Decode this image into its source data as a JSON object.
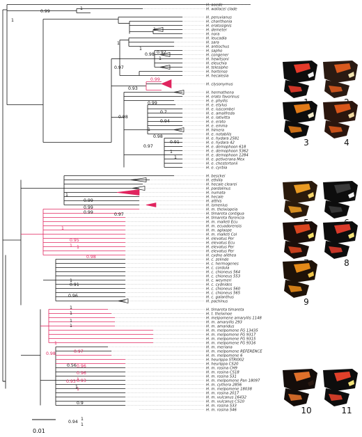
{
  "leaves": [
    {
      "label": "H. aoede",
      "red": false
    },
    {
      "label": "H. wallacei clade",
      "red": false
    },
    {
      "label": "",
      "red": false
    },
    {
      "label": "H. peruvianus",
      "red": false
    },
    {
      "label": "H. charithonia",
      "red": false
    },
    {
      "label": "H. eratosignis",
      "red": false
    },
    {
      "label": "H. demeter",
      "red": false
    },
    {
      "label": "H. nora",
      "red": false
    },
    {
      "label": "H. leucadia",
      "red": false
    },
    {
      "label": "H. sara",
      "red": false
    },
    {
      "label": "H. antiochus",
      "red": false
    },
    {
      "label": "H. sapho",
      "red": false
    },
    {
      "label": "H. congener",
      "red": false
    },
    {
      "label": "H. hewitsoni",
      "red": false
    },
    {
      "label": "H. eleuchia",
      "red": false
    },
    {
      "label": "H. telesiphe",
      "red": false
    },
    {
      "label": "H. hortense",
      "red": false
    },
    {
      "label": "H. hecalesia",
      "red": false
    },
    {
      "label": "",
      "red": false
    },
    {
      "label": "H. clysonymus",
      "red": false
    },
    {
      "label": "",
      "red": false
    },
    {
      "label": "H. hermathena",
      "red": false
    },
    {
      "label": "H. erato favorinus",
      "red": false
    },
    {
      "label": "H. e. phyllis",
      "red": false
    },
    {
      "label": "H. e. etylus",
      "red": false
    },
    {
      "label": "H. e. luscombei",
      "red": false
    },
    {
      "label": "H. e. amalfreda",
      "red": false
    },
    {
      "label": "H. e. lativitta",
      "red": false
    },
    {
      "label": "H. e. erato",
      "red": false
    },
    {
      "label": "H. e. emma",
      "red": false
    },
    {
      "label": "H. himera",
      "red": false
    },
    {
      "label": "H. e. notabilis",
      "red": false
    },
    {
      "label": "H. e. hydara 2581",
      "red": false
    },
    {
      "label": "H. e. hydara 42",
      "red": false
    },
    {
      "label": "H. e. demophoon 618",
      "red": false
    },
    {
      "label": "H. e. demophoon 5362",
      "red": false
    },
    {
      "label": "H. e. demophoon 1284",
      "red": false
    },
    {
      "label": "H. e. petiverana Mex",
      "red": false
    },
    {
      "label": "H. e. chestertonii",
      "red": false
    },
    {
      "label": "H. e. cyrbia",
      "red": false
    },
    {
      "label": "",
      "red": false
    },
    {
      "label": "H. besckei",
      "red": false
    },
    {
      "label": "H. ethilla",
      "red": false
    },
    {
      "label": "H. hecale clearei",
      "red": false
    },
    {
      "label": "H. pardalinus",
      "red": false
    },
    {
      "label": "H. numata",
      "red": false
    },
    {
      "label": "H. hecale",
      "red": false
    },
    {
      "label": "H. atthis",
      "red": false
    },
    {
      "label": "H. ismenius",
      "red": false
    },
    {
      "label": "H. m. thelxiopeia",
      "red": false
    },
    {
      "label": "H. timareta contigua",
      "red": false
    },
    {
      "label": "H. timareta florencia",
      "red": false
    },
    {
      "label": "H. m. malleti Ecu",
      "red": false
    },
    {
      "label": "H. m. ecuadorensis",
      "red": false
    },
    {
      "label": "H. m. aglaope",
      "red": false
    },
    {
      "label": "H. m. malleti Col",
      "red": false
    },
    {
      "label": "H. elevatus Per",
      "red": false
    },
    {
      "label": "H. elevatus Ecu",
      "red": false
    },
    {
      "label": "H. elevatus Per",
      "red": false
    },
    {
      "label": "H. elevatus Per",
      "red": false
    },
    {
      "label": "H. cydno alithea",
      "red": false
    },
    {
      "label": "H. c. zelinde",
      "red": false
    },
    {
      "label": "H. c. hermogenes",
      "red": false
    },
    {
      "label": "H. c. cordula",
      "red": false
    },
    {
      "label": "H. c. chioneus 564",
      "red": false
    },
    {
      "label": "H. c. chioneus 553",
      "red": false
    },
    {
      "label": "H. c. weymeri",
      "red": false
    },
    {
      "label": "H. c. cydnides",
      "red": false
    },
    {
      "label": "H. c. chioneus 560",
      "red": false
    },
    {
      "label": "H. c. chioneus 565",
      "red": false
    },
    {
      "label": "H. c. galanthus",
      "red": false
    },
    {
      "label": "H. pachinus",
      "red": false
    },
    {
      "label": "",
      "red": false
    },
    {
      "label": "H. timareta timareta",
      "red": false
    },
    {
      "label": "H. t. thelxinoe",
      "red": false
    },
    {
      "label": "H. melpomene amaryllis 1148",
      "red": false
    },
    {
      "label": "H. m. amaryllis 293",
      "red": false
    },
    {
      "label": "H. m. amandus",
      "red": false
    },
    {
      "label": "H. m. melpomene FG 13435",
      "red": false
    },
    {
      "label": "H. m. melpomene FG 9317",
      "red": false
    },
    {
      "label": "H. m. melpomene FG 9315",
      "red": false
    },
    {
      "label": "H. m. melpomene FG 9316",
      "red": false
    },
    {
      "label": "H. m. meriana",
      "red": false
    },
    {
      "label": "H. m. melpomene REFERENCE",
      "red": false
    },
    {
      "label": "H. m. melpomene 6",
      "red": false
    },
    {
      "label": "H. heurippa STRI002",
      "red": false
    },
    {
      "label": "H. heurippa CS20",
      "red": false
    },
    {
      "label": "H. m. rosina CH9",
      "red": false
    },
    {
      "label": "H. m. rosina CS18",
      "red": false
    },
    {
      "label": "H. m. rosina 531",
      "red": false
    },
    {
      "label": "H. m. melpomene Pan 18097",
      "red": false
    },
    {
      "label": "H. m. cythera 2856",
      "red": false
    },
    {
      "label": "H. m. melpomene 18038",
      "red": false
    },
    {
      "label": "H. m. rosina 2017",
      "red": false
    },
    {
      "label": "H. m. vulcanus 16432",
      "red": false
    },
    {
      "label": "H. m. vulcanus CS10",
      "red": false
    },
    {
      "label": "H. m. rosina 533",
      "red": false
    },
    {
      "label": "H. m. rosina 546",
      "red": false
    }
  ],
  "supports": [
    {
      "label": "1",
      "red": false
    },
    {
      "label": "0.99",
      "red": false
    },
    {
      "label": "1",
      "red": false
    },
    {
      "label": "1",
      "red": false
    },
    {
      "label": "1",
      "red": false
    },
    {
      "label": "1",
      "red": false
    },
    {
      "label": "0.98",
      "red": false
    },
    {
      "label": "0.92",
      "red": false
    },
    {
      "label": "1",
      "red": false
    },
    {
      "label": "0.97",
      "red": false
    },
    {
      "label": "0.99",
      "red": true
    },
    {
      "label": "0.93",
      "red": false
    },
    {
      "label": "0.99",
      "red": false
    },
    {
      "label": "0.7",
      "red": false
    },
    {
      "label": "0.98",
      "red": false
    },
    {
      "label": "0.94",
      "red": false
    },
    {
      "label": "1",
      "red": false
    },
    {
      "label": "0.98",
      "red": false
    },
    {
      "label": "0.97",
      "red": false
    },
    {
      "label": "0.91",
      "red": false
    },
    {
      "label": "1",
      "red": false
    },
    {
      "label": "1",
      "red": false
    },
    {
      "label": "1",
      "red": false
    },
    {
      "label": "0.99",
      "red": false
    },
    {
      "label": "0.99",
      "red": false
    },
    {
      "label": "0.99",
      "red": false
    },
    {
      "label": "0.97",
      "red": false
    },
    {
      "label": "1",
      "red": true
    },
    {
      "label": "1",
      "red": true
    },
    {
      "label": "0.95",
      "red": true
    },
    {
      "label": "1",
      "red": true
    },
    {
      "label": "0.98",
      "red": true
    },
    {
      "label": "1",
      "red": false
    },
    {
      "label": "0.91",
      "red": false
    },
    {
      "label": "0.96",
      "red": false
    },
    {
      "label": "1",
      "red": false
    },
    {
      "label": "1",
      "red": false
    },
    {
      "label": "1",
      "red": false
    },
    {
      "label": "1",
      "red": false
    },
    {
      "label": "1",
      "red": true
    },
    {
      "label": "0.97",
      "red": true
    },
    {
      "label": "0.98",
      "red": true
    },
    {
      "label": "0.96",
      "red": true
    },
    {
      "label": "0.96",
      "red": true
    },
    {
      "label": "1",
      "red": true
    },
    {
      "label": "0.56",
      "red": false
    },
    {
      "label": "1",
      "red": false
    },
    {
      "label": "0.93",
      "red": true
    },
    {
      "label": "0.93",
      "red": true
    },
    {
      "label": "1",
      "red": true
    },
    {
      "label": "0.9",
      "red": false
    },
    {
      "label": "0.94",
      "red": false
    },
    {
      "label": "1",
      "red": false
    },
    {
      "label": "1",
      "red": false
    }
  ],
  "wings": [
    {
      "number": "1",
      "colors": [
        "#0d0d0d",
        "#e53a2a",
        "#f2f2f2"
      ]
    },
    {
      "number": "2",
      "colors": [
        "#2a1a12",
        "#d8591e",
        "#f2e4b0"
      ]
    },
    {
      "number": "3",
      "colors": [
        "#0d0d0d",
        "#e07a18",
        "#f3eccc"
      ]
    },
    {
      "number": "4",
      "colors": [
        "#2b160e",
        "#d8561a",
        "#f0d9a0"
      ]
    },
    {
      "number": "5",
      "colors": [
        "#2a1a0c",
        "#e99a22",
        "#f5d56a"
      ]
    },
    {
      "number": "6",
      "colors": [
        "#0d0d0d",
        "#3a3a3a",
        "#f2f2f2"
      ]
    },
    {
      "number": "7",
      "colors": [
        "#1a0e0a",
        "#d9451f",
        "#f4e06a"
      ]
    },
    {
      "number": "8",
      "colors": [
        "#0d0d0d",
        "#d93a2a",
        "#f4e47a"
      ]
    },
    {
      "number": "9",
      "colors": [
        "#1e1208",
        "#e48a18",
        "#f0c64a"
      ]
    },
    {
      "number": "10",
      "colors": [
        "#140d0a",
        "#e0702a",
        "#2a1a12"
      ]
    },
    {
      "number": "11",
      "colors": [
        "#0d0d0d",
        "#e0402a",
        "#f4e47a"
      ]
    }
  ],
  "scale": {
    "label": "0.01"
  },
  "colors": {
    "highlight": "#e0245e",
    "branch": "#111111",
    "leader": "#9a9a9a"
  }
}
